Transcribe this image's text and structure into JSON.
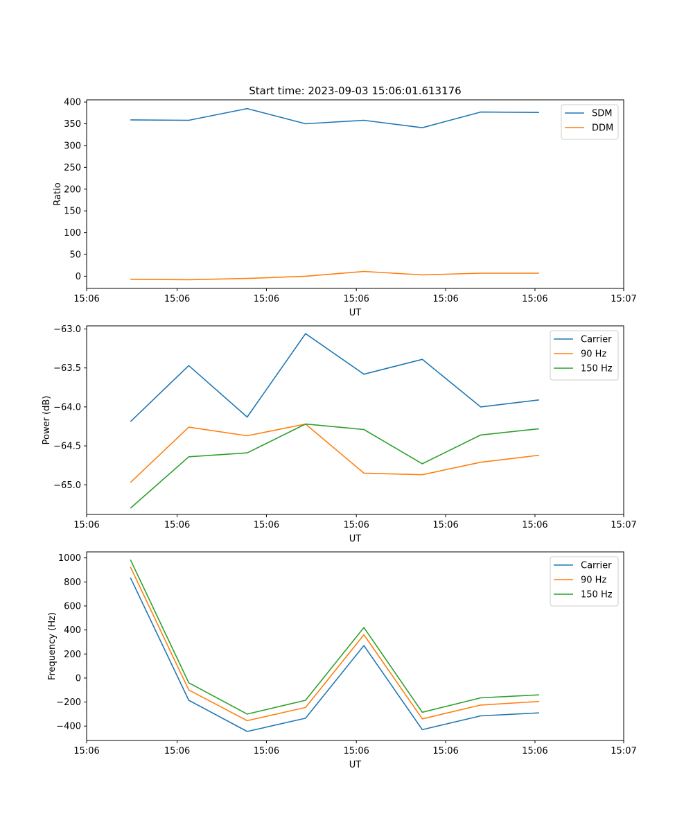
{
  "figure_title": "Start time: 2023-09-03 15:06:01.613176",
  "chart_data": [
    {
      "type": "line",
      "title": "Start time: 2023-09-03 15:06:01.613176",
      "xlabel": "UT",
      "ylabel": "Ratio",
      "x": [
        0,
        1,
        2,
        3,
        4,
        5,
        6,
        7
      ],
      "xlim": [
        -0.75,
        8.45
      ],
      "ylim": [
        -28,
        405
      ],
      "xticks": [
        {
          "pos": -0.75,
          "label": "15:06"
        },
        {
          "pos": 0.8,
          "label": "15:06"
        },
        {
          "pos": 2.33,
          "label": "15:06"
        },
        {
          "pos": 3.87,
          "label": "15:06"
        },
        {
          "pos": 5.4,
          "label": "15:06"
        },
        {
          "pos": 6.93,
          "label": "15:06"
        },
        {
          "pos": 8.45,
          "label": "15:07"
        }
      ],
      "yticks": [
        {
          "value": 0,
          "label": "0"
        },
        {
          "value": 50,
          "label": "50"
        },
        {
          "value": 100,
          "label": "100"
        },
        {
          "value": 150,
          "label": "150"
        },
        {
          "value": 200,
          "label": "200"
        },
        {
          "value": 250,
          "label": "250"
        },
        {
          "value": 300,
          "label": "300"
        },
        {
          "value": 350,
          "label": "350"
        },
        {
          "value": 400,
          "label": "400"
        }
      ],
      "legend_position": "top-right",
      "series": [
        {
          "name": "SDM",
          "color": "#1f77b4",
          "values": [
            359,
            358,
            385,
            350,
            358,
            341,
            377,
            376
          ]
        },
        {
          "name": "DDM",
          "color": "#ff7f0e",
          "values": [
            -7,
            -8,
            -5,
            0,
            11,
            3,
            7,
            7
          ]
        }
      ]
    },
    {
      "type": "line",
      "title": "",
      "xlabel": "UT",
      "ylabel": "Power (dB)",
      "x": [
        0,
        1,
        2,
        3,
        4,
        5,
        6,
        7
      ],
      "xlim": [
        -0.75,
        8.45
      ],
      "ylim": [
        -65.38,
        -62.96
      ],
      "xticks": [
        {
          "pos": -0.75,
          "label": "15:06"
        },
        {
          "pos": 0.8,
          "label": "15:06"
        },
        {
          "pos": 2.33,
          "label": "15:06"
        },
        {
          "pos": 3.87,
          "label": "15:06"
        },
        {
          "pos": 5.4,
          "label": "15:06"
        },
        {
          "pos": 6.93,
          "label": "15:06"
        },
        {
          "pos": 8.45,
          "label": "15:07"
        }
      ],
      "yticks": [
        {
          "value": -65.0,
          "label": "−65.0"
        },
        {
          "value": -64.5,
          "label": "−64.5"
        },
        {
          "value": -64.0,
          "label": "−64.0"
        },
        {
          "value": -63.5,
          "label": "−63.5"
        },
        {
          "value": -63.0,
          "label": "−63.0"
        }
      ],
      "legend_position": "top-right",
      "series": [
        {
          "name": "Carrier",
          "color": "#1f77b4",
          "values": [
            -64.19,
            -63.47,
            -64.13,
            -63.06,
            -63.58,
            -63.39,
            -64.0,
            -63.91
          ]
        },
        {
          "name": "90 Hz",
          "color": "#ff7f0e",
          "values": [
            -64.97,
            -64.26,
            -64.37,
            -64.22,
            -64.85,
            -64.87,
            -64.71,
            -64.62
          ]
        },
        {
          "name": "150 Hz",
          "color": "#2ca02c",
          "values": [
            -65.3,
            -64.64,
            -64.59,
            -64.22,
            -64.29,
            -64.73,
            -64.36,
            -64.28
          ]
        }
      ]
    },
    {
      "type": "line",
      "title": "",
      "xlabel": "UT",
      "ylabel": "Frequency (Hz)",
      "x": [
        0,
        1,
        2,
        3,
        4,
        5,
        6,
        7
      ],
      "xlim": [
        -0.75,
        8.45
      ],
      "ylim": [
        -520,
        1050
      ],
      "xticks": [
        {
          "pos": -0.75,
          "label": "15:06"
        },
        {
          "pos": 0.8,
          "label": "15:06"
        },
        {
          "pos": 2.33,
          "label": "15:06"
        },
        {
          "pos": 3.87,
          "label": "15:06"
        },
        {
          "pos": 5.4,
          "label": "15:06"
        },
        {
          "pos": 6.93,
          "label": "15:06"
        },
        {
          "pos": 8.45,
          "label": "15:07"
        }
      ],
      "yticks": [
        {
          "value": -400,
          "label": "−400"
        },
        {
          "value": -200,
          "label": "−200"
        },
        {
          "value": 0,
          "label": "0"
        },
        {
          "value": 200,
          "label": "200"
        },
        {
          "value": 400,
          "label": "400"
        },
        {
          "value": 600,
          "label": "600"
        },
        {
          "value": 800,
          "label": "800"
        },
        {
          "value": 1000,
          "label": "1000"
        }
      ],
      "legend_position": "top-right",
      "series": [
        {
          "name": "Carrier",
          "color": "#1f77b4",
          "values": [
            835,
            -185,
            -445,
            -335,
            270,
            -430,
            -315,
            -290
          ]
        },
        {
          "name": "90 Hz",
          "color": "#ff7f0e",
          "values": [
            925,
            -100,
            -355,
            -245,
            360,
            -340,
            -225,
            -195
          ]
        },
        {
          "name": "150 Hz",
          "color": "#2ca02c",
          "values": [
            985,
            -40,
            -300,
            -185,
            420,
            -285,
            -165,
            -140
          ]
        }
      ]
    }
  ]
}
